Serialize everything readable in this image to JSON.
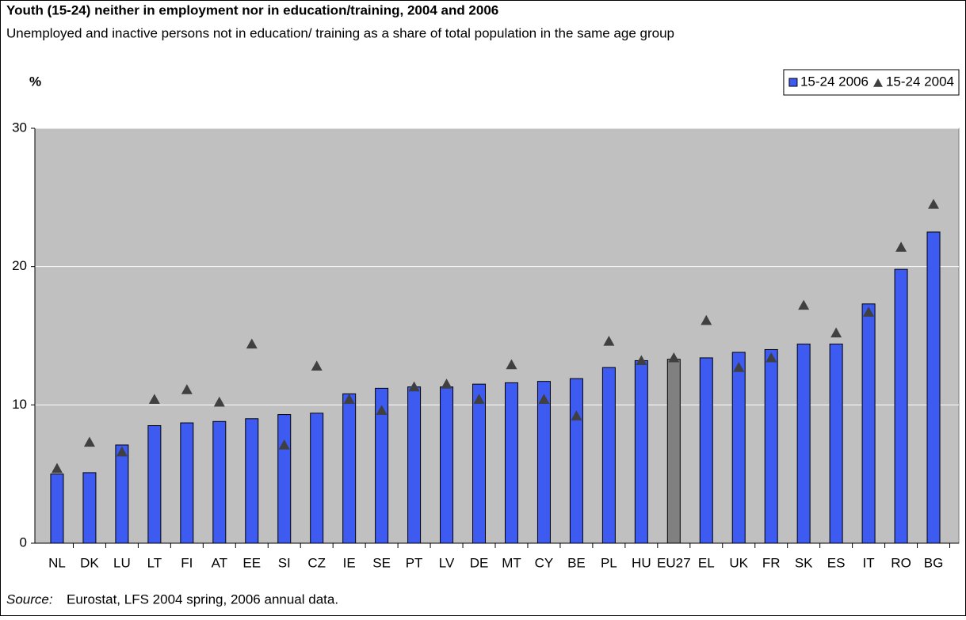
{
  "chart_data": {
    "type": "bar",
    "title": "Youth (15-24) neither in employment nor in education/training, 2004 and 2006",
    "subtitle": "Unemployed and inactive persons not in education/ training as a share of total population in the same age group",
    "y_label": "%",
    "source_label": "Source:",
    "source": "Eurostat, LFS 2004 spring, 2006 annual data.",
    "categories": [
      "NL",
      "DK",
      "LU",
      "LT",
      "FI",
      "AT",
      "EE",
      "SI",
      "CZ",
      "IE",
      "SE",
      "PT",
      "LV",
      "DE",
      "MT",
      "CY",
      "BE",
      "PL",
      "HU",
      "EU27",
      "EL",
      "UK",
      "FR",
      "SK",
      "ES",
      "IT",
      "RO",
      "BG"
    ],
    "series": [
      {
        "name": "15-24 2006",
        "type": "bar",
        "color": "#3d5af1",
        "colors": [
          "#3d5af1",
          "#3d5af1",
          "#3d5af1",
          "#3d5af1",
          "#3d5af1",
          "#3d5af1",
          "#3d5af1",
          "#3d5af1",
          "#3d5af1",
          "#3d5af1",
          "#3d5af1",
          "#3d5af1",
          "#3d5af1",
          "#3d5af1",
          "#3d5af1",
          "#3d5af1",
          "#3d5af1",
          "#3d5af1",
          "#3d5af1",
          "#808080",
          "#3d5af1",
          "#3d5af1",
          "#3d5af1",
          "#3d5af1",
          "#3d5af1",
          "#3d5af1",
          "#3d5af1",
          "#3d5af1"
        ],
        "values": [
          5.0,
          5.1,
          7.1,
          8.5,
          8.7,
          8.8,
          9.0,
          9.3,
          9.4,
          10.8,
          11.2,
          11.3,
          11.3,
          11.5,
          11.6,
          11.7,
          11.9,
          12.7,
          13.2,
          13.3,
          13.4,
          13.8,
          14.0,
          14.4,
          14.4,
          17.3,
          19.8,
          22.5
        ]
      },
      {
        "name": "15-24 2004",
        "type": "marker",
        "color": "#404040",
        "values": [
          5.4,
          7.3,
          6.6,
          10.4,
          11.1,
          10.2,
          14.4,
          7.1,
          12.8,
          10.4,
          9.6,
          11.3,
          11.5,
          10.4,
          12.9,
          10.4,
          9.2,
          14.6,
          13.2,
          13.4,
          16.1,
          12.7,
          13.4,
          17.2,
          15.2,
          16.7,
          21.4,
          24.5
        ]
      }
    ],
    "ylim": [
      0,
      30
    ],
    "yticks": [
      0,
      10,
      20,
      30
    ],
    "grid": true,
    "legend": "top-right",
    "background": "#c0c0c0"
  }
}
